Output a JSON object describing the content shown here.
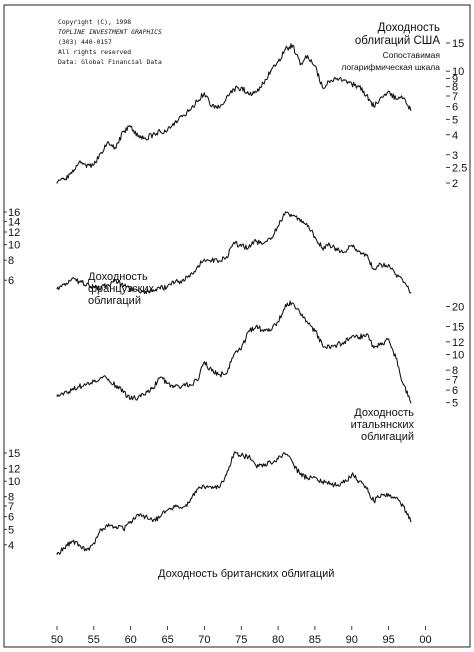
{
  "copyright": {
    "lines": [
      "Copyright (C), 1998",
      "TOPLINE INVESTMENT GRAPHICS",
      "(303) 440-0157",
      "All rights reserved",
      "Data: Global Financial Data"
    ]
  },
  "chart_data": {
    "type": "line",
    "scale": "log",
    "grid": false,
    "x_ticks": [
      "50",
      "55",
      "60",
      "65",
      "70",
      "75",
      "80",
      "85",
      "90",
      "95",
      "00"
    ],
    "x_range": [
      1949,
      1999
    ],
    "series": [
      {
        "name": "us",
        "label_lines": [
          "Доходность",
          "облигаций США"
        ],
        "note_lines": [
          "Сопоставимая",
          "логарифмическая шкала"
        ],
        "ticks": [
          "15",
          "10",
          "9",
          "8",
          "7",
          "6",
          "5",
          "4",
          "3",
          "2.5",
          "2"
        ],
        "x": [
          1950,
          1951,
          1952,
          1953,
          1954,
          1955,
          1956,
          1957,
          1958,
          1959,
          1960,
          1961,
          1962,
          1963,
          1964,
          1965,
          1966,
          1967,
          1968,
          1969,
          1970,
          1971,
          1972,
          1973,
          1974,
          1975,
          1976,
          1977,
          1978,
          1979,
          1980,
          1981,
          1982,
          1983,
          1984,
          1985,
          1986,
          1987,
          1988,
          1989,
          1990,
          1991,
          1992,
          1993,
          1994,
          1995,
          1996,
          1997,
          1998
        ],
        "values": [
          2.0,
          2.1,
          2.3,
          2.7,
          2.5,
          2.6,
          3.1,
          3.6,
          3.3,
          4.2,
          4.5,
          3.9,
          3.8,
          4.0,
          4.2,
          4.3,
          4.8,
          5.2,
          5.7,
          6.5,
          7.3,
          6.0,
          5.9,
          6.9,
          7.7,
          7.9,
          7.2,
          7.4,
          8.4,
          10.0,
          11.5,
          13.8,
          14.5,
          11.0,
          12.5,
          10.8,
          8.0,
          8.5,
          9.0,
          8.8,
          8.3,
          8.0,
          7.1,
          6.0,
          6.9,
          7.5,
          6.7,
          6.8,
          5.7
        ]
      },
      {
        "name": "france",
        "label_lines": [
          "Доходность",
          "французских",
          "облигаций"
        ],
        "ticks": [
          "16",
          "14",
          "12",
          "10",
          "8",
          "6"
        ],
        "x": [
          1950,
          1951,
          1952,
          1953,
          1954,
          1955,
          1956,
          1957,
          1958,
          1959,
          1960,
          1961,
          1962,
          1963,
          1964,
          1965,
          1966,
          1967,
          1968,
          1969,
          1970,
          1971,
          1972,
          1973,
          1974,
          1975,
          1976,
          1977,
          1978,
          1979,
          1980,
          1981,
          1982,
          1983,
          1984,
          1985,
          1986,
          1987,
          1988,
          1989,
          1990,
          1991,
          1992,
          1993,
          1994,
          1995,
          1996,
          1997,
          1998
        ],
        "values": [
          5.3,
          5.7,
          6.1,
          5.9,
          5.6,
          5.5,
          5.4,
          5.6,
          6.0,
          5.5,
          5.3,
          5.2,
          5.1,
          5.2,
          5.3,
          5.5,
          5.8,
          6.0,
          6.3,
          7.2,
          8.1,
          8.0,
          7.9,
          8.4,
          10.3,
          9.8,
          9.6,
          10.5,
          10.2,
          10.8,
          13.0,
          16.0,
          15.2,
          14.0,
          13.0,
          11.2,
          9.5,
          10.0,
          9.2,
          9.0,
          9.9,
          9.1,
          8.6,
          7.0,
          7.5,
          7.5,
          6.5,
          5.8,
          5.0
        ]
      },
      {
        "name": "italy",
        "label_lines": [
          "Доходность",
          "итальянских",
          "облигаций"
        ],
        "ticks": [
          "20",
          "15",
          "12",
          "10",
          "8",
          "7",
          "6",
          "5"
        ],
        "x": [
          1950,
          1951,
          1952,
          1953,
          1954,
          1955,
          1956,
          1957,
          1958,
          1959,
          1960,
          1961,
          1962,
          1963,
          1964,
          1965,
          1966,
          1967,
          1968,
          1969,
          1970,
          1971,
          1972,
          1973,
          1974,
          1975,
          1976,
          1977,
          1978,
          1979,
          1980,
          1981,
          1982,
          1983,
          1984,
          1985,
          1986,
          1987,
          1988,
          1989,
          1990,
          1991,
          1992,
          1993,
          1994,
          1995,
          1996,
          1997,
          1998
        ],
        "values": [
          5.5,
          5.8,
          6.0,
          6.3,
          6.5,
          6.8,
          7.2,
          7.0,
          6.4,
          5.8,
          5.3,
          5.4,
          5.6,
          6.2,
          7.2,
          6.6,
          6.3,
          6.4,
          6.5,
          6.9,
          9.0,
          7.9,
          7.5,
          7.6,
          10.0,
          10.8,
          14.0,
          15.0,
          14.0,
          14.2,
          16.0,
          20.5,
          21.0,
          18.0,
          15.8,
          14.0,
          11.5,
          11.0,
          11.5,
          12.0,
          13.0,
          12.8,
          13.4,
          11.0,
          11.5,
          12.5,
          9.5,
          6.5,
          5.0
        ]
      },
      {
        "name": "uk",
        "label_lines": [
          "Доходность британских облигаций"
        ],
        "ticks": [
          "15",
          "12",
          "10",
          "8",
          "7",
          "6",
          "5",
          "4"
        ],
        "x": [
          1950,
          1951,
          1952,
          1953,
          1954,
          1955,
          1956,
          1957,
          1958,
          1959,
          1960,
          1961,
          1962,
          1963,
          1964,
          1965,
          1966,
          1967,
          1968,
          1969,
          1970,
          1971,
          1972,
          1973,
          1974,
          1975,
          1976,
          1977,
          1978,
          1979,
          1980,
          1981,
          1982,
          1983,
          1984,
          1985,
          1986,
          1987,
          1988,
          1989,
          1990,
          1991,
          1992,
          1993,
          1994,
          1995,
          1996,
          1997,
          1998
        ],
        "values": [
          3.5,
          3.8,
          4.2,
          4.0,
          3.7,
          4.1,
          5.0,
          5.4,
          5.2,
          5.0,
          5.6,
          6.2,
          6.0,
          5.6,
          6.0,
          6.6,
          6.9,
          6.8,
          7.4,
          8.9,
          9.2,
          9.0,
          9.1,
          11.0,
          14.8,
          14.5,
          14.2,
          12.5,
          12.8,
          13.0,
          13.8,
          14.7,
          13.0,
          11.0,
          10.5,
          10.6,
          9.9,
          9.6,
          9.4,
          9.8,
          11.0,
          10.0,
          9.0,
          7.5,
          8.3,
          8.3,
          7.9,
          7.0,
          5.6
        ]
      }
    ]
  }
}
